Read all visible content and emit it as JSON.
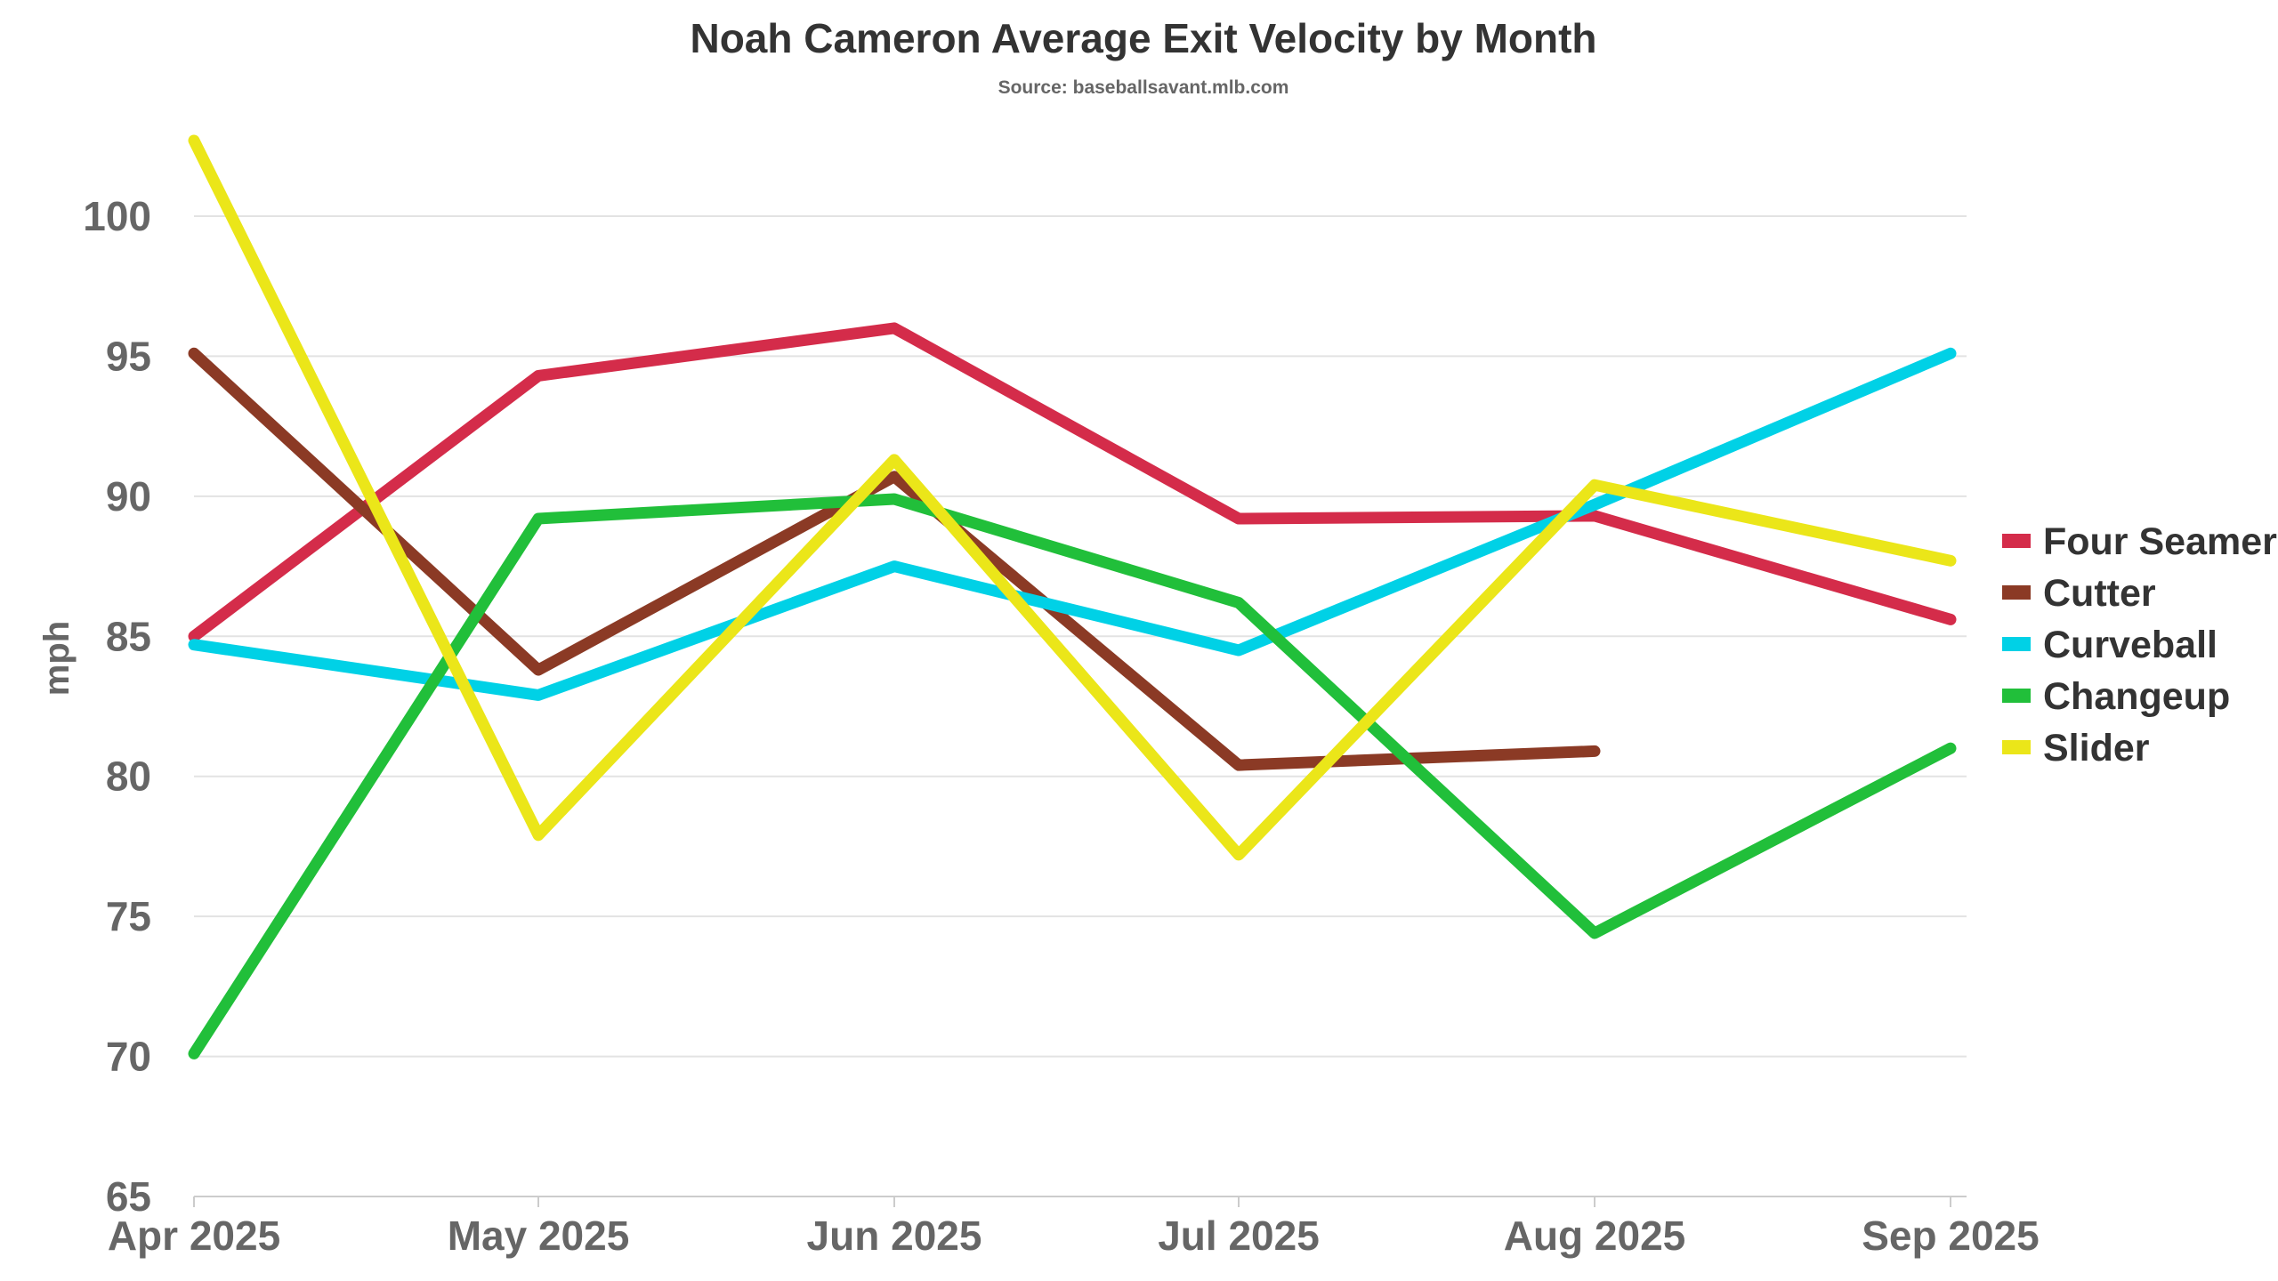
{
  "chart_data": {
    "type": "line",
    "title": "Noah Cameron Average Exit Velocity by Month",
    "subtitle": "Source: baseballsavant.mlb.com",
    "xlabel": "",
    "ylabel": "mph",
    "categories": [
      "Apr 2025",
      "May 2025",
      "Jun 2025",
      "Jul 2025",
      "Aug 2025",
      "Sep 2025"
    ],
    "ylim": [
      65,
      102
    ],
    "yticks": [
      65,
      70,
      75,
      80,
      85,
      90,
      95,
      100
    ],
    "grid": true,
    "legend_position": "right",
    "series": [
      {
        "name": "Four Seamer",
        "color": "#d42c4a",
        "values": [
          85.0,
          94.3,
          96.0,
          89.2,
          89.3,
          85.6
        ]
      },
      {
        "name": "Cutter",
        "color": "#8b3a25",
        "values": [
          95.1,
          83.8,
          90.7,
          80.4,
          80.9,
          null
        ]
      },
      {
        "name": "Curveball",
        "color": "#00d1e6",
        "values": [
          84.7,
          82.9,
          87.5,
          84.5,
          89.7,
          95.1
        ]
      },
      {
        "name": "Changeup",
        "color": "#21bf3a",
        "values": [
          70.1,
          89.2,
          89.9,
          86.2,
          74.4,
          81.0
        ]
      },
      {
        "name": "Slider",
        "color": "#ebe619",
        "values": [
          102.7,
          77.9,
          91.3,
          77.2,
          90.4,
          87.7
        ]
      }
    ]
  }
}
